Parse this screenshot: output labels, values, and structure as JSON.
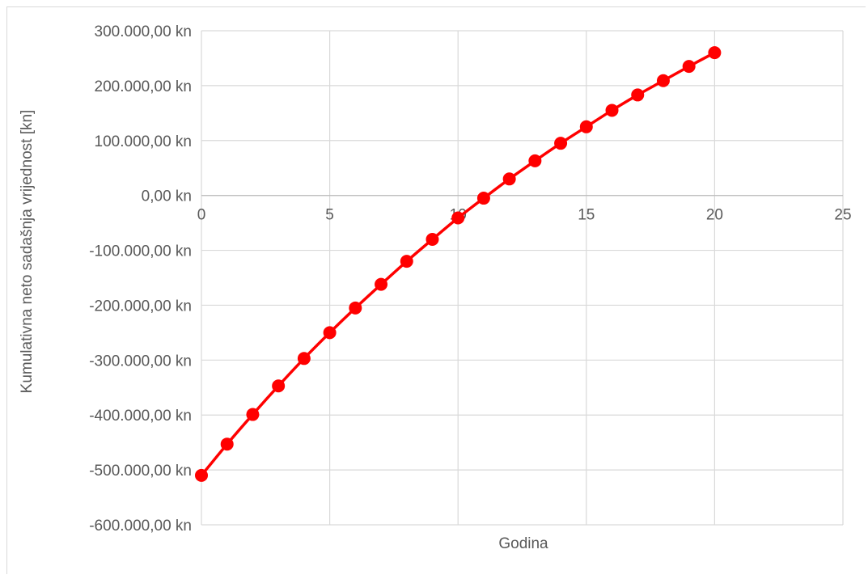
{
  "chart_data": {
    "type": "scatter",
    "title": "",
    "xlabel": "Godina",
    "ylabel": "Kumulativna neto sadašnja vrijednost [kn]",
    "xlim": [
      0,
      25
    ],
    "ylim": [
      -600000,
      300000
    ],
    "x_ticks": [
      0,
      5,
      10,
      15,
      20,
      25
    ],
    "x_tick_labels": [
      "0",
      "5",
      "10",
      "15",
      "20",
      "25"
    ],
    "y_ticks": [
      300000,
      200000,
      100000,
      0,
      -100000,
      -200000,
      -300000,
      -400000,
      -500000,
      -600000
    ],
    "y_tick_labels": [
      "300.000,00 kn",
      "200.000,00 kn",
      "100.000,00 kn",
      "0,00 kn",
      "-100.000,00 kn",
      "-200.000,00 kn",
      "-300.000,00 kn",
      "-400.000,00 kn",
      "-500.000,00 kn",
      "-600.000,00 kn"
    ],
    "grid": true,
    "legend": "none",
    "series": [
      {
        "color": "#ff0000",
        "marker": "circle",
        "line": "smooth",
        "x": [
          0,
          1,
          2,
          3,
          4,
          5,
          6,
          7,
          8,
          9,
          10,
          11,
          12,
          13,
          14,
          15,
          16,
          17,
          18,
          19,
          20
        ],
        "y": [
          -510000,
          -453000,
          -399000,
          -347000,
          -297000,
          -250000,
          -205000,
          -162000,
          -120000,
          -80000,
          -41000,
          -5000,
          30000,
          63000,
          95000,
          125000,
          155000,
          183000,
          209000,
          235000,
          260000
        ]
      }
    ]
  }
}
